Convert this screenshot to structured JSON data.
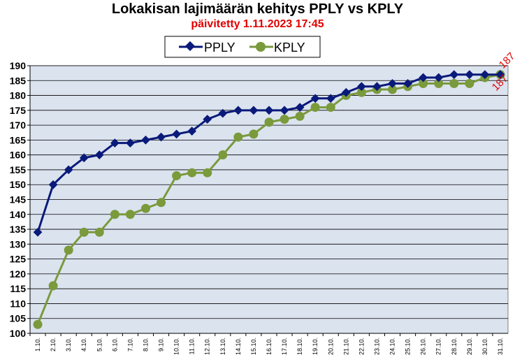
{
  "chart_data": {
    "type": "line",
    "title": "Lokakisan lajimäärän kehitys PPLY vs KPLY",
    "subtitle": "päivitetty 1.11.2023 17:45",
    "xlabel": "",
    "ylabel": "",
    "ylim": [
      100,
      190
    ],
    "ystep": 5,
    "grid": true,
    "legend_position": "top-center",
    "categories": [
      "1.10.",
      "2.10.",
      "3.10.",
      "4.10.",
      "5.10.",
      "6.10.",
      "7.10.",
      "8.10.",
      "9.10.",
      "10.10.",
      "11.10.",
      "12.10.",
      "13.10.",
      "14.10.",
      "15.10.",
      "16.10.",
      "17.10.",
      "18.10.",
      "19.10.",
      "20.10.",
      "21.10.",
      "22.10.",
      "23.10.",
      "24.10.",
      "25.10.",
      "26.10.",
      "27.10.",
      "28.10.",
      "29.10.",
      "30.10.",
      "31.10."
    ],
    "series": [
      {
        "name": "PPLY",
        "color": "#0a1a7a",
        "marker": "diamond",
        "values": [
          134,
          150,
          155,
          159,
          160,
          164,
          164,
          165,
          166,
          167,
          168,
          172,
          174,
          175,
          175,
          175,
          175,
          176,
          179,
          179,
          181,
          183,
          183,
          184,
          184,
          186,
          186,
          187,
          187,
          187,
          187
        ]
      },
      {
        "name": "KPLY",
        "color": "#7a9a3c",
        "marker": "circle",
        "values": [
          103,
          116,
          128,
          134,
          134,
          140,
          140,
          142,
          144,
          153,
          154,
          154,
          160,
          166,
          167,
          171,
          172,
          173,
          176,
          176,
          180,
          181,
          182,
          182,
          183,
          184,
          184,
          184,
          184,
          186,
          187
        ]
      }
    ],
    "end_labels": [
      "187",
      "187"
    ]
  }
}
